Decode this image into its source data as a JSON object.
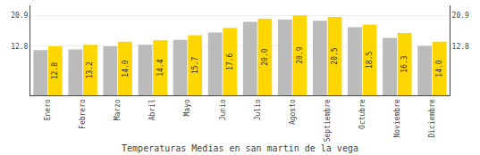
{
  "chart_data": {
    "type": "bar",
    "title": "Temperaturas Medias en san martin de la vega",
    "categories": [
      "Enero",
      "Febrero",
      "Marzo",
      "Abril",
      "Mayo",
      "Junio",
      "Julio",
      "Agosto",
      "Septiembre",
      "Octubre",
      "Noviembre",
      "Diciembre"
    ],
    "series": [
      {
        "color": "#BBBBBB",
        "values": [
          11.8,
          12.0,
          12.8,
          13.2,
          14.5,
          16.4,
          19.2,
          19.8,
          19.5,
          17.8,
          15.0,
          12.9
        ]
      },
      {
        "color": "#FFD700",
        "values": [
          12.8,
          13.2,
          14.0,
          14.4,
          15.7,
          17.6,
          20.0,
          20.9,
          20.5,
          18.5,
          16.3,
          14.0
        ],
        "value_labels": [
          "12.8",
          "13.2",
          "14.0",
          "14.4",
          "15.7",
          "17.6",
          "20.0",
          "20.9",
          "20.5",
          "18.5",
          "16.3",
          "14.0"
        ],
        "data_labels": true
      }
    ],
    "ylim": [
      0.0,
      23.5
    ],
    "yticks": [
      12.8,
      20.9
    ],
    "y2lim": [
      0.0,
      23.5
    ],
    "y2ticks": [
      12.8,
      20.9
    ],
    "grid": true
  }
}
